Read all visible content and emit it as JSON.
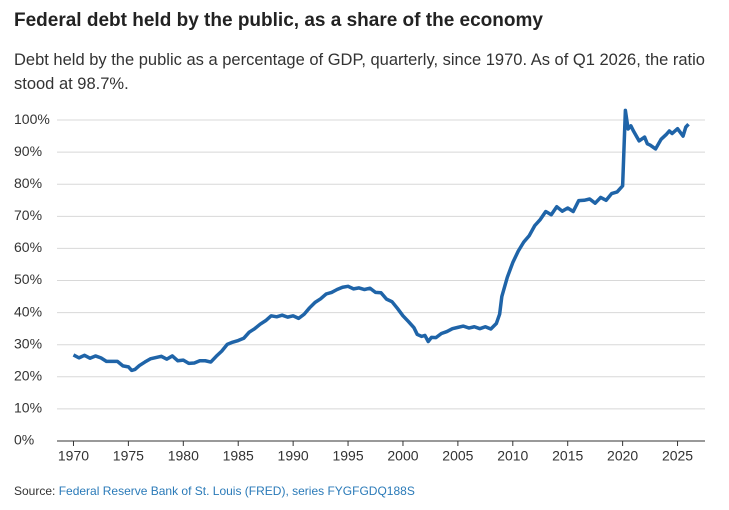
{
  "chart_data": {
    "type": "line",
    "title": "Federal debt held by the public, as a share of the economy",
    "subtitle": "Debt held by the public as a percentage of GDP, quarterly, since 1970. As of Q1 2026, the ratio stood at 98.7%.",
    "source": {
      "label": "Source:",
      "link": "Federal Reserve Bank of St. Louis (FRED), series FYGFGDQ188S"
    },
    "color": "#1f64a8",
    "x": [
      1970,
      1970.5,
      1971,
      1971.5,
      1972,
      1972.5,
      1973,
      1974,
      1974.5,
      1975,
      1975.3,
      1975.6,
      1976,
      1976.5,
      1977,
      1977.5,
      1978,
      1978.5,
      1979,
      1979.5,
      1980,
      1980.5,
      1981,
      1981.5,
      1982,
      1982.5,
      1983,
      1983.5,
      1984,
      1984.5,
      1985,
      1985.5,
      1986,
      1986.5,
      1987,
      1987.5,
      1988,
      1988.5,
      1989,
      1989.5,
      1990,
      1990.5,
      1991,
      1991.5,
      1992,
      1992.5,
      1993,
      1993.5,
      1994,
      1994.5,
      1995,
      1995.5,
      1996,
      1996.5,
      1997,
      1997.5,
      1998,
      1998.5,
      1999,
      1999.5,
      2000,
      2000.5,
      2001,
      2001.3,
      2001.7,
      2002,
      2002.3,
      2002.6,
      2003,
      2003.5,
      2004,
      2004.5,
      2005,
      2005.5,
      2006,
      2006.5,
      2007,
      2007.5,
      2008,
      2008.5,
      2008.8,
      2009,
      2009.5,
      2010,
      2010.5,
      2011,
      2011.5,
      2012,
      2012.5,
      2013,
      2013.5,
      2014,
      2014.5,
      2015,
      2015.5,
      2016,
      2016.5,
      2017,
      2017.5,
      2018,
      2018.5,
      2019,
      2019.5,
      2020,
      2020.25,
      2020.5,
      2020.75,
      2021,
      2021.5,
      2022,
      2022.25,
      2022.5,
      2023,
      2023.5,
      2024,
      2024.25,
      2024.5,
      2025,
      2025.5,
      2025.75,
      2026
    ],
    "values": [
      26.8,
      25.9,
      26.7,
      25.8,
      26.5,
      25.9,
      24.8,
      24.8,
      23.4,
      23.1,
      22.0,
      22.3,
      23.5,
      24.6,
      25.6,
      26.0,
      26.4,
      25.5,
      26.5,
      25.0,
      25.2,
      24.2,
      24.3,
      25.0,
      25.0,
      24.6,
      26.4,
      28.0,
      30.1,
      30.8,
      31.3,
      32.0,
      33.9,
      35.0,
      36.4,
      37.5,
      39.0,
      38.7,
      39.2,
      38.6,
      39.0,
      38.2,
      39.5,
      41.5,
      43.2,
      44.3,
      45.8,
      46.3,
      47.2,
      47.9,
      48.2,
      47.4,
      47.7,
      47.2,
      47.6,
      46.3,
      46.2,
      44.2,
      43.4,
      41.3,
      39.0,
      37.2,
      35.3,
      33.2,
      32.6,
      32.9,
      31.0,
      32.3,
      32.2,
      33.5,
      34.1,
      35.0,
      35.4,
      35.8,
      35.2,
      35.6,
      35.0,
      35.6,
      34.9,
      36.6,
      39.5,
      45.0,
      51.0,
      55.6,
      59.2,
      62.0,
      64.0,
      67.1,
      69.0,
      71.5,
      70.5,
      73.0,
      71.6,
      72.6,
      71.5,
      74.9,
      75.0,
      75.4,
      74.1,
      75.9,
      75.0,
      77.1,
      77.6,
      79.5,
      103.0,
      97.2,
      98.2,
      96.5,
      93.5,
      94.7,
      92.6,
      92.2,
      91.0,
      94.0,
      95.6,
      96.6,
      95.8,
      97.3,
      95.0,
      97.8,
      98.7
    ],
    "xlim": [
      1968.5,
      2027.5
    ],
    "xticks": [
      1970,
      1975,
      1980,
      1985,
      1990,
      1995,
      2000,
      2005,
      2010,
      2015,
      2020,
      2025
    ],
    "ylim": [
      0,
      105
    ],
    "yticks": [
      {
        "value": 0,
        "label": "0%"
      },
      {
        "value": 10,
        "label": "10%"
      },
      {
        "value": 20,
        "label": "20%"
      },
      {
        "value": 30,
        "label": "30%"
      },
      {
        "value": 40,
        "label": "40%"
      },
      {
        "value": 50,
        "label": "50%"
      },
      {
        "value": 60,
        "label": "60%"
      },
      {
        "value": 70,
        "label": "70%"
      },
      {
        "value": 80,
        "label": "80%"
      },
      {
        "value": 90,
        "label": "90%"
      },
      {
        "value": 100,
        "label": "100%"
      }
    ],
    "grid": true
  }
}
